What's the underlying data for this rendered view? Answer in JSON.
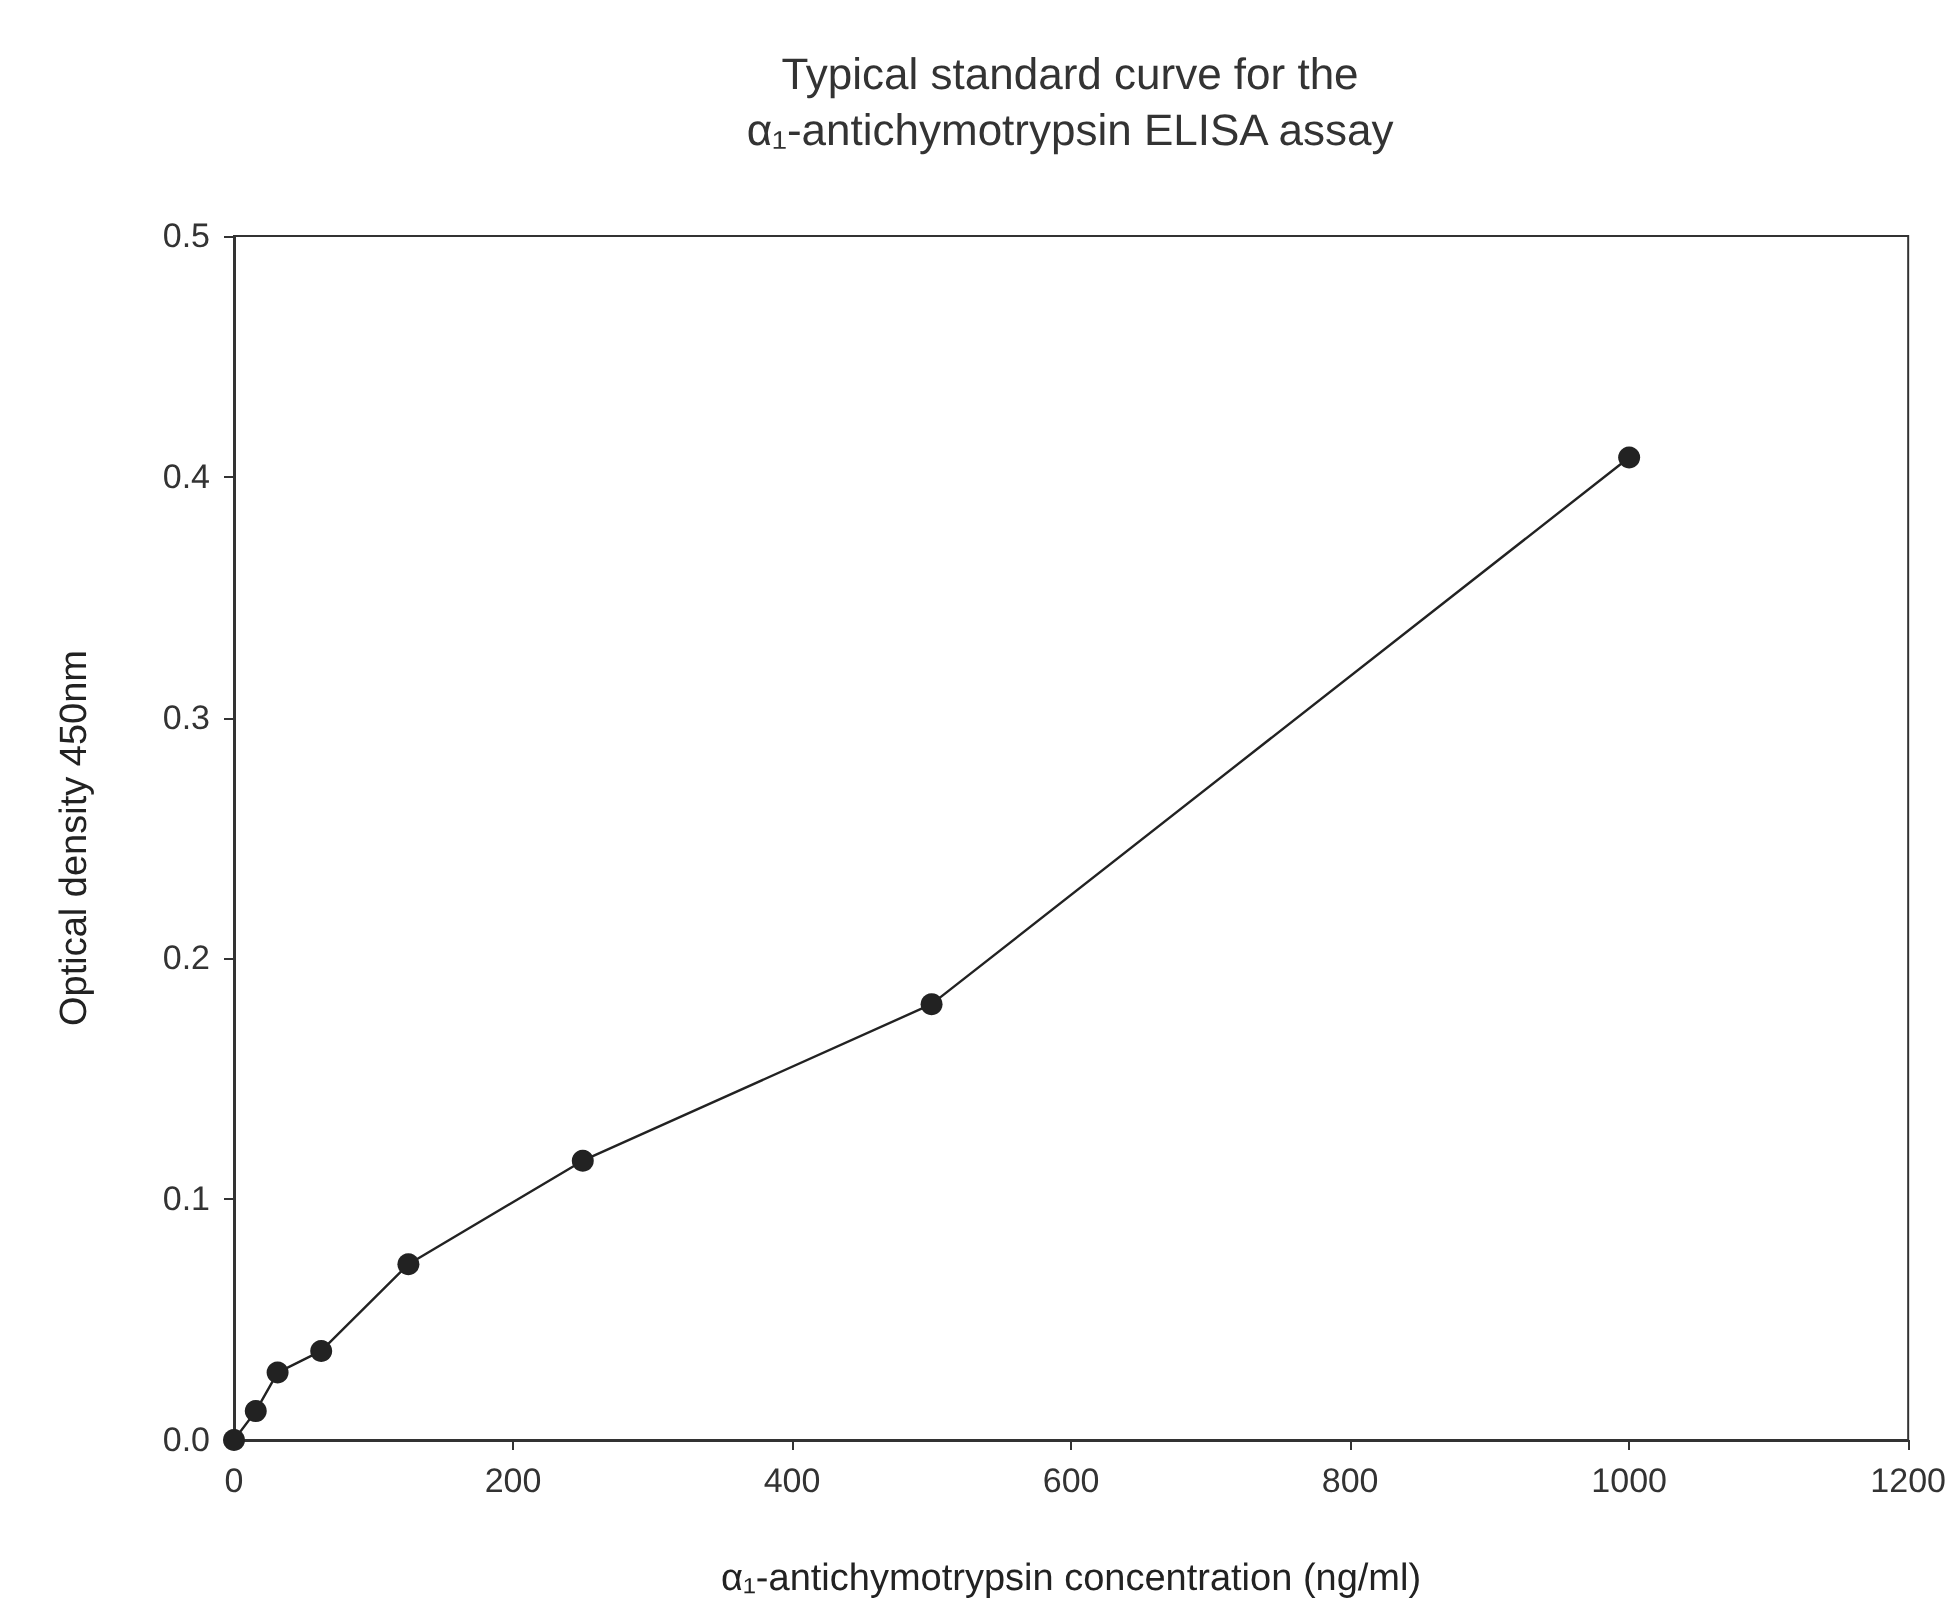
{
  "chart_data": {
    "type": "line",
    "title": "Typical standard curve for the\nα₁-antichymotrypsin ELISA assay",
    "xlabel": "α₁-antichymotrypsin concentration (ng/ml)",
    "ylabel": "Optical density 450nm",
    "x": [
      0,
      15.6,
      31.25,
      62.5,
      125,
      250,
      500,
      1000
    ],
    "series": [
      {
        "color": "#222222",
        "values": [
          0.0,
          0.012,
          0.028,
          0.037,
          0.073,
          0.116,
          0.181,
          0.408
        ]
      }
    ],
    "xlim": [
      0,
      1200
    ],
    "xticks": [
      0,
      200,
      400,
      600,
      800,
      1000,
      1200
    ],
    "ylim": [
      0,
      0.5
    ],
    "yticks": [
      {
        "value": 0,
        "label": "0.0"
      },
      0.1,
      0.2,
      0.3,
      0.4,
      0.5
    ],
    "grid": false,
    "marker": "circle",
    "line_style": "solid"
  }
}
